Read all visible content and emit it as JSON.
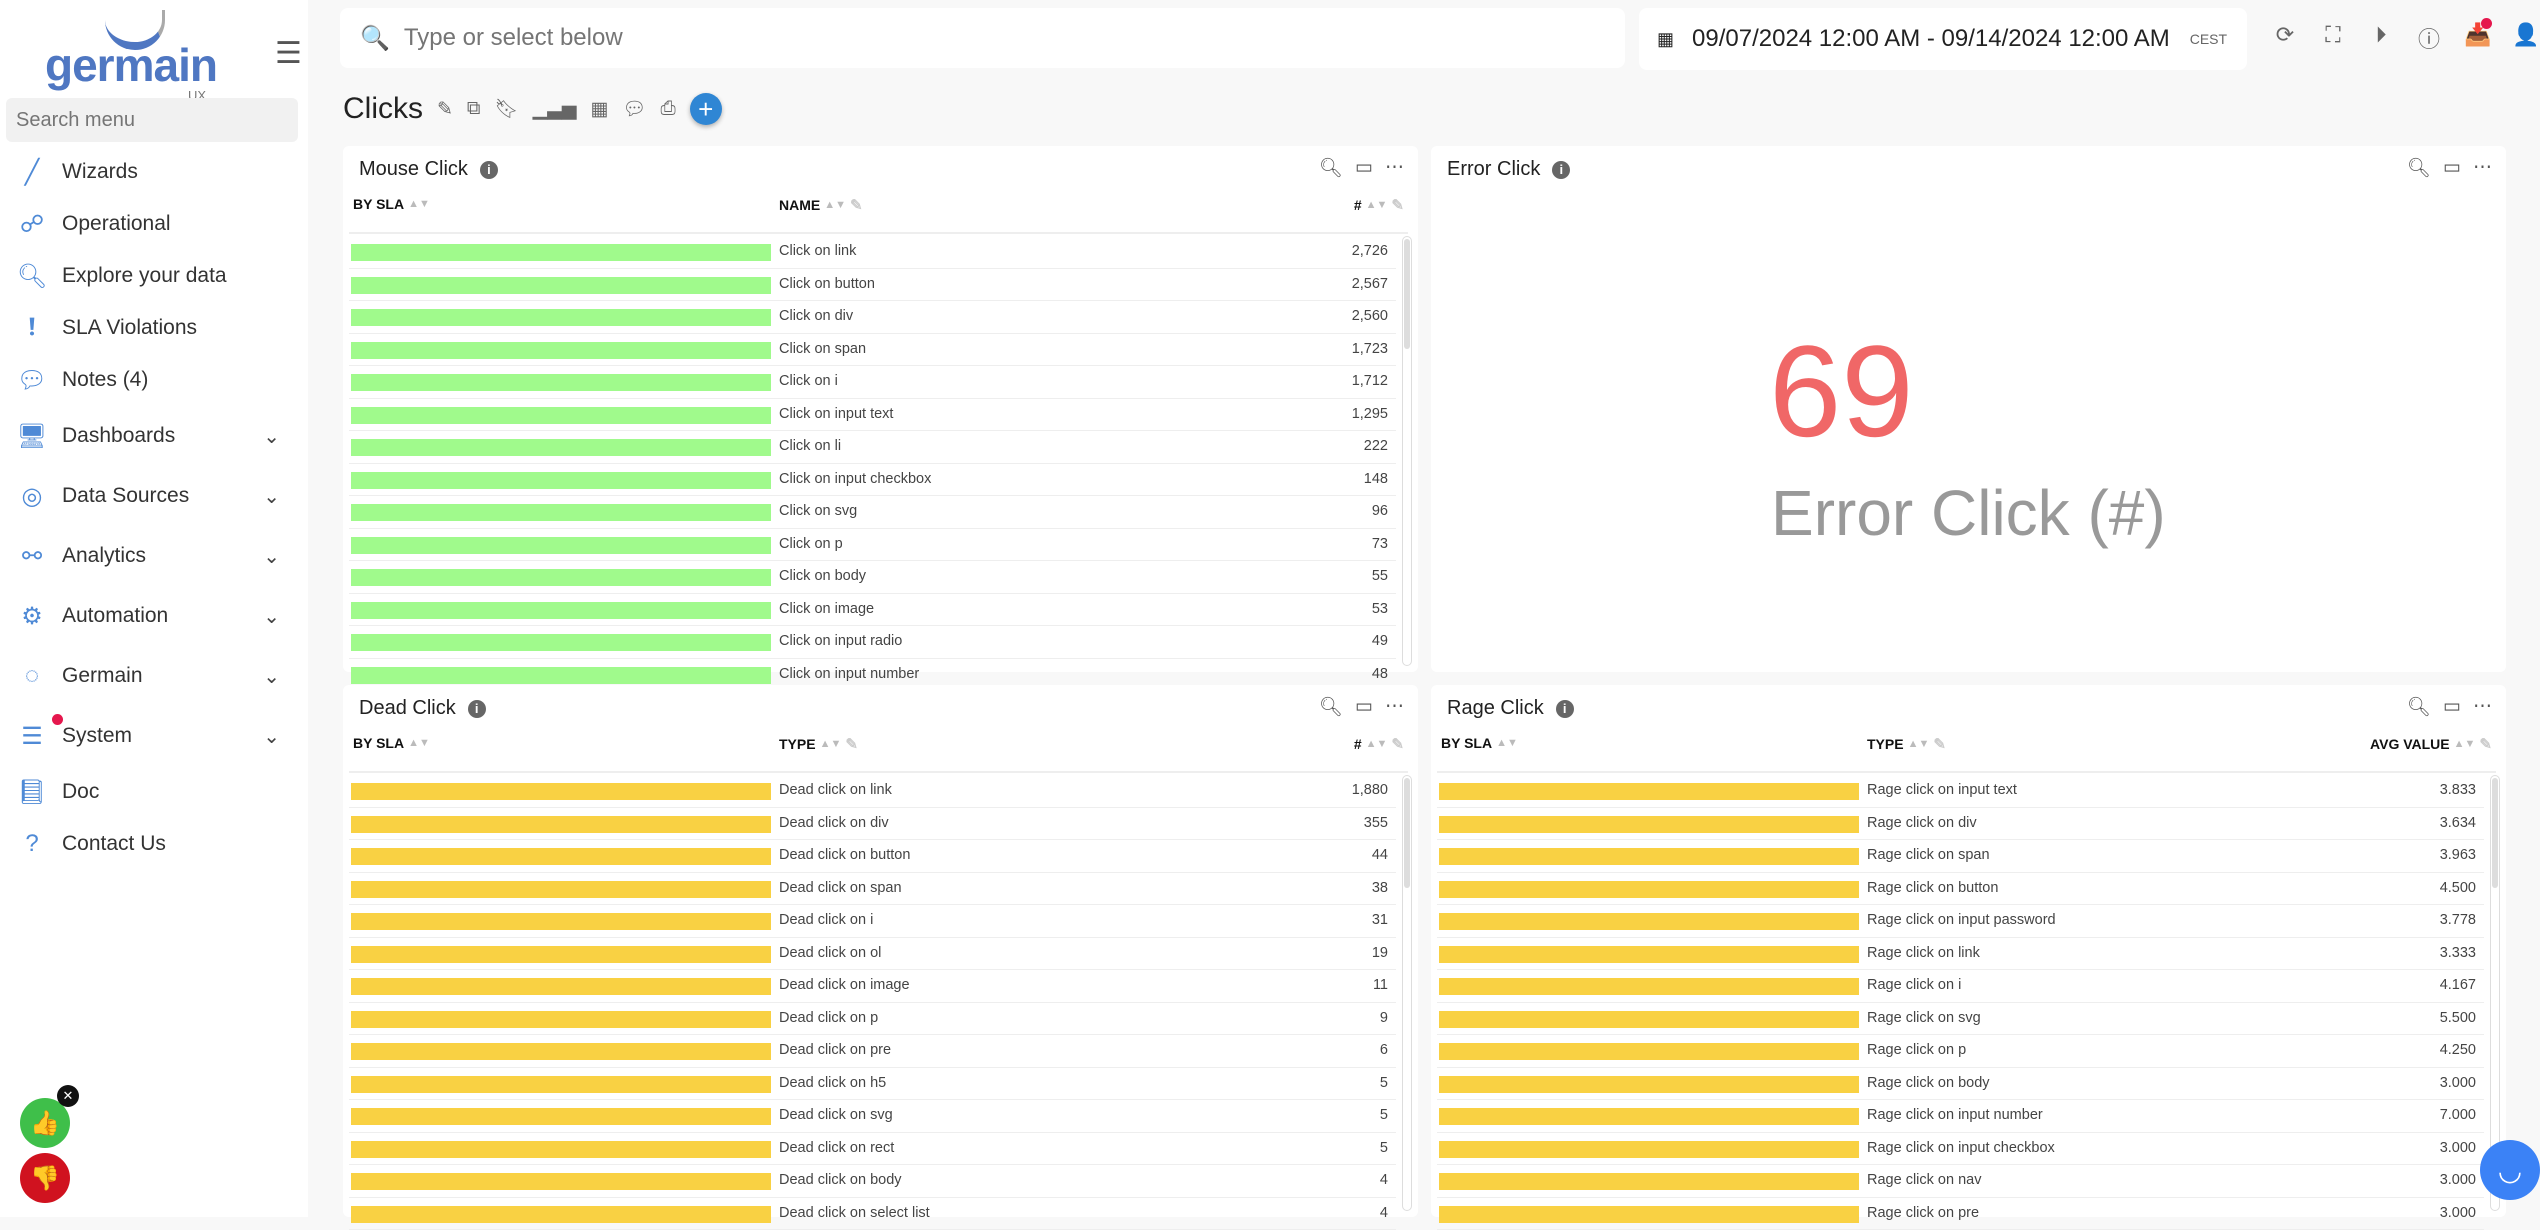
{
  "brand": {
    "name": "germain",
    "sub": "UX"
  },
  "sidebar": {
    "search_placeholder": "Search menu",
    "items": [
      {
        "label": "Wizards",
        "icon": "wand-icon"
      },
      {
        "label": "Operational",
        "icon": "sitemap-icon"
      },
      {
        "label": "Explore your data",
        "icon": "search-icon"
      },
      {
        "label": "SLA Violations",
        "icon": "exclamation-icon"
      },
      {
        "label": "Notes (4)",
        "icon": "comments-icon"
      },
      {
        "label": "Dashboards",
        "icon": "dashboard-icon",
        "expandable": true
      },
      {
        "label": "Data Sources",
        "icon": "database-icon",
        "expandable": true
      },
      {
        "label": "Analytics",
        "icon": "analytics-icon",
        "expandable": true
      },
      {
        "label": "Automation",
        "icon": "gear-icon",
        "expandable": true
      },
      {
        "label": "Germain",
        "icon": "circle-icon",
        "expandable": true
      },
      {
        "label": "System",
        "icon": "sliders-icon",
        "expandable": true,
        "notification": true
      },
      {
        "label": "Doc",
        "icon": "book-icon"
      },
      {
        "label": "Contact Us",
        "icon": "question-icon"
      }
    ]
  },
  "topbar": {
    "search_placeholder": "Type or select below",
    "date_range": "09/07/2024 12:00 AM - 09/14/2024 12:00 AM",
    "timezone": "CEST"
  },
  "page": {
    "title": "Clicks"
  },
  "colors": {
    "green_bar": "#a0fa8c",
    "yellow_bar": "#f9d143",
    "error_value": "#f06767",
    "accent": "#2f86d4"
  },
  "mouse_click": {
    "title": "Mouse Click",
    "columns": [
      "BY SLA",
      "NAME",
      "#"
    ],
    "rows": [
      [
        "Click on link",
        "2,726"
      ],
      [
        "Click on button",
        "2,567"
      ],
      [
        "Click on div",
        "2,560"
      ],
      [
        "Click on span",
        "1,723"
      ],
      [
        "Click on i",
        "1,712"
      ],
      [
        "Click on input text",
        "1,295"
      ],
      [
        "Click on li",
        "222"
      ],
      [
        "Click on input checkbox",
        "148"
      ],
      [
        "Click on svg",
        "96"
      ],
      [
        "Click on p",
        "73"
      ],
      [
        "Click on body",
        "55"
      ],
      [
        "Click on image",
        "53"
      ],
      [
        "Click on input radio",
        "49"
      ],
      [
        "Click on input number",
        "48"
      ]
    ]
  },
  "error_click": {
    "title": "Error Click",
    "value": "69",
    "label": "Error Click (#)"
  },
  "dead_click": {
    "title": "Dead Click",
    "columns": [
      "BY SLA",
      "TYPE",
      "#"
    ],
    "rows": [
      [
        "Dead click on link",
        "1,880"
      ],
      [
        "Dead click on div",
        "355"
      ],
      [
        "Dead click on button",
        "44"
      ],
      [
        "Dead click on span",
        "38"
      ],
      [
        "Dead click on i",
        "31"
      ],
      [
        "Dead click on ol",
        "19"
      ],
      [
        "Dead click on image",
        "11"
      ],
      [
        "Dead click on p",
        "9"
      ],
      [
        "Dead click on pre",
        "6"
      ],
      [
        "Dead click on h5",
        "5"
      ],
      [
        "Dead click on svg",
        "5"
      ],
      [
        "Dead click on rect",
        "5"
      ],
      [
        "Dead click on body",
        "4"
      ],
      [
        "Dead click on select list",
        "4"
      ]
    ]
  },
  "rage_click": {
    "title": "Rage Click",
    "columns": [
      "BY SLA",
      "TYPE",
      "AVG VALUE"
    ],
    "rows": [
      [
        "Rage click on input text",
        "3.833"
      ],
      [
        "Rage click on div",
        "3.634"
      ],
      [
        "Rage click on span",
        "3.963"
      ],
      [
        "Rage click on button",
        "4.500"
      ],
      [
        "Rage click on input password",
        "3.778"
      ],
      [
        "Rage click on link",
        "3.333"
      ],
      [
        "Rage click on i",
        "4.167"
      ],
      [
        "Rage click on svg",
        "5.500"
      ],
      [
        "Rage click on p",
        "4.250"
      ],
      [
        "Rage click on body",
        "3.000"
      ],
      [
        "Rage click on input number",
        "7.000"
      ],
      [
        "Rage click on input checkbox",
        "3.000"
      ],
      [
        "Rage click on nav",
        "3.000"
      ],
      [
        "Rage click on pre",
        "3.000"
      ]
    ]
  }
}
